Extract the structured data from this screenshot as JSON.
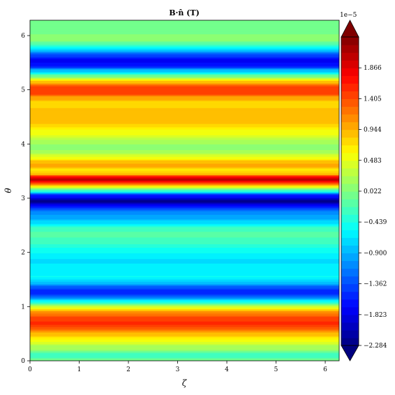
{
  "chart_data": {
    "type": "heatmap",
    "title": "B·n̂ (T)",
    "xlabel": "ζ",
    "ylabel": "θ",
    "xlim": [
      0,
      6.283
    ],
    "ylim": [
      0,
      6.283
    ],
    "x_ticks": [
      "0",
      "1",
      "2",
      "3",
      "4",
      "5",
      "6"
    ],
    "y_ticks": [
      "0",
      "1",
      "2",
      "3",
      "4",
      "5",
      "6"
    ],
    "colormap": "jet",
    "colorbar": {
      "multiplier_label": "1e−5",
      "vmin": -2.284,
      "vmax": 2.327,
      "ticks": [
        -2.284,
        -1.823,
        -1.362,
        -0.9,
        -0.439,
        0.022,
        0.483,
        0.944,
        1.405,
        1.866
      ],
      "tick_labels": [
        "−2.284",
        "−1.823",
        "−1.362",
        "−0.900",
        "−0.439",
        "0.022",
        "0.483",
        "0.944",
        "1.405",
        "1.866"
      ],
      "extend": "both"
    },
    "profile_note": "field varies with theta only (horizontal bands)",
    "theta_profile": [
      [
        0.0,
        0.0
      ],
      [
        0.1,
        -0.3
      ],
      [
        0.25,
        0.2
      ],
      [
        0.4,
        0.6
      ],
      [
        0.5,
        0.9
      ],
      [
        0.6,
        1.35
      ],
      [
        0.7,
        1.55
      ],
      [
        0.8,
        1.45
      ],
      [
        0.9,
        1.1
      ],
      [
        1.0,
        0.4
      ],
      [
        1.1,
        -0.5
      ],
      [
        1.2,
        -1.3
      ],
      [
        1.28,
        -1.6
      ],
      [
        1.36,
        -1.3
      ],
      [
        1.45,
        -0.8
      ],
      [
        1.55,
        -0.55
      ],
      [
        1.7,
        -0.6
      ],
      [
        1.85,
        -0.7
      ],
      [
        2.0,
        -0.55
      ],
      [
        2.2,
        -0.3
      ],
      [
        2.35,
        -0.15
      ],
      [
        2.45,
        -0.3
      ],
      [
        2.55,
        -0.7
      ],
      [
        2.65,
        -0.95
      ],
      [
        2.75,
        -1.1
      ],
      [
        2.85,
        -1.6
      ],
      [
        2.95,
        -2.2
      ],
      [
        3.05,
        -1.6
      ],
      [
        3.15,
        -0.3
      ],
      [
        3.22,
        0.6
      ],
      [
        3.28,
        1.4
      ],
      [
        3.35,
        2.1
      ],
      [
        3.4,
        1.7
      ],
      [
        3.45,
        0.9
      ],
      [
        3.52,
        0.7
      ],
      [
        3.6,
        1.0
      ],
      [
        3.68,
        0.9
      ],
      [
        3.75,
        0.55
      ],
      [
        3.85,
        0.2
      ],
      [
        3.95,
        0.05
      ],
      [
        4.05,
        0.2
      ],
      [
        4.2,
        0.5
      ],
      [
        4.4,
        0.85
      ],
      [
        4.6,
        0.9
      ],
      [
        4.75,
        0.75
      ],
      [
        4.85,
        1.0
      ],
      [
        4.95,
        1.45
      ],
      [
        5.05,
        1.45
      ],
      [
        5.15,
        0.9
      ],
      [
        5.25,
        0.0
      ],
      [
        5.35,
        -0.8
      ],
      [
        5.45,
        -1.6
      ],
      [
        5.55,
        -1.75
      ],
      [
        5.65,
        -1.4
      ],
      [
        5.75,
        -0.7
      ],
      [
        5.85,
        -0.2
      ],
      [
        5.95,
        0.1
      ],
      [
        6.1,
        -0.05
      ],
      [
        6.283,
        0.0
      ]
    ]
  }
}
